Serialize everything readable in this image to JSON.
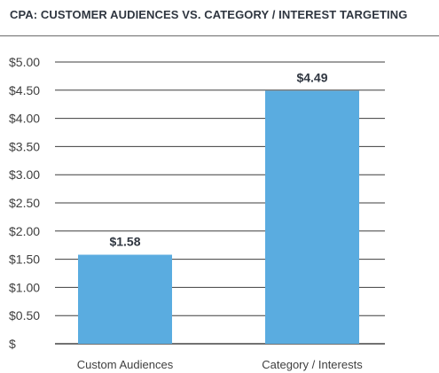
{
  "chart_data": {
    "type": "bar",
    "title": "CPA: CUSTOMER AUDIENCES VS. CATEGORY / INTEREST TARGETING",
    "categories": [
      "Custom Audiences",
      "Category / Interests"
    ],
    "values": [
      1.58,
      4.49
    ],
    "data_labels": [
      "$1.58",
      "$4.49"
    ],
    "ylim": [
      0,
      5
    ],
    "yticks": [
      0,
      0.5,
      1,
      1.5,
      2,
      2.5,
      3,
      3.5,
      4,
      4.5,
      5
    ],
    "ytick_labels": [
      "$",
      "$0.50",
      "$1.00",
      "$1.50",
      "$2.00",
      "$2.50",
      "$3.00",
      "$3.50",
      "$4.00",
      "$4.50",
      "$5.00"
    ],
    "xlabel": "",
    "ylabel": "",
    "grid": true,
    "legend": "none",
    "bar_color": "#5aace0"
  }
}
